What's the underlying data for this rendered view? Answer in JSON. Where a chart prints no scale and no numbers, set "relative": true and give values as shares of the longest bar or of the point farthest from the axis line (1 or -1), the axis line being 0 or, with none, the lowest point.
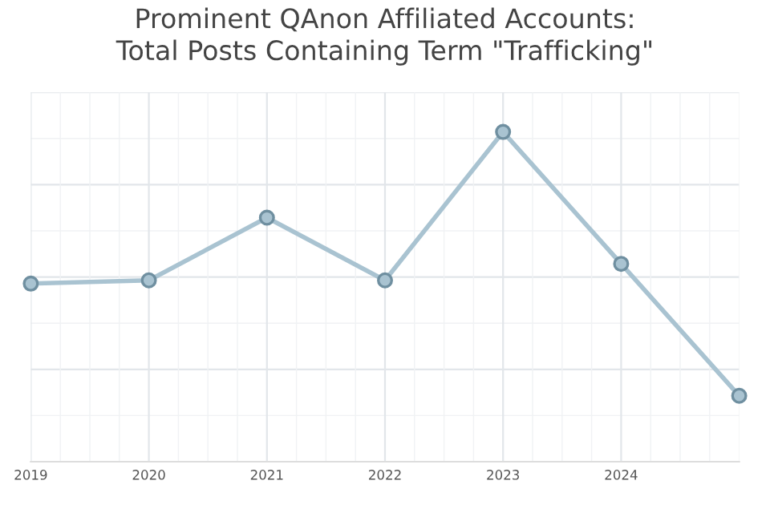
{
  "chart_data": {
    "type": "line",
    "title": "Prominent QAnon Affiliated Accounts:\nTotal Posts Containing Term \"Trafficking\"",
    "x": [
      2019,
      2020,
      2021,
      2022,
      2023,
      2024,
      2025
    ],
    "series": [
      {
        "color": "#a9c3d1",
        "values": [
          0.54,
          0.55,
          0.74,
          0.55,
          1,
          0.6,
          0.2
        ]
      }
    ],
    "relative": true,
    "xlim": [
      2019,
      2025
    ],
    "xticks": [
      2019,
      2020,
      2021,
      2022,
      2023,
      2024
    ],
    "tick_labels": "x",
    "grid": true,
    "marker": "circle",
    "line_style": "solid"
  }
}
